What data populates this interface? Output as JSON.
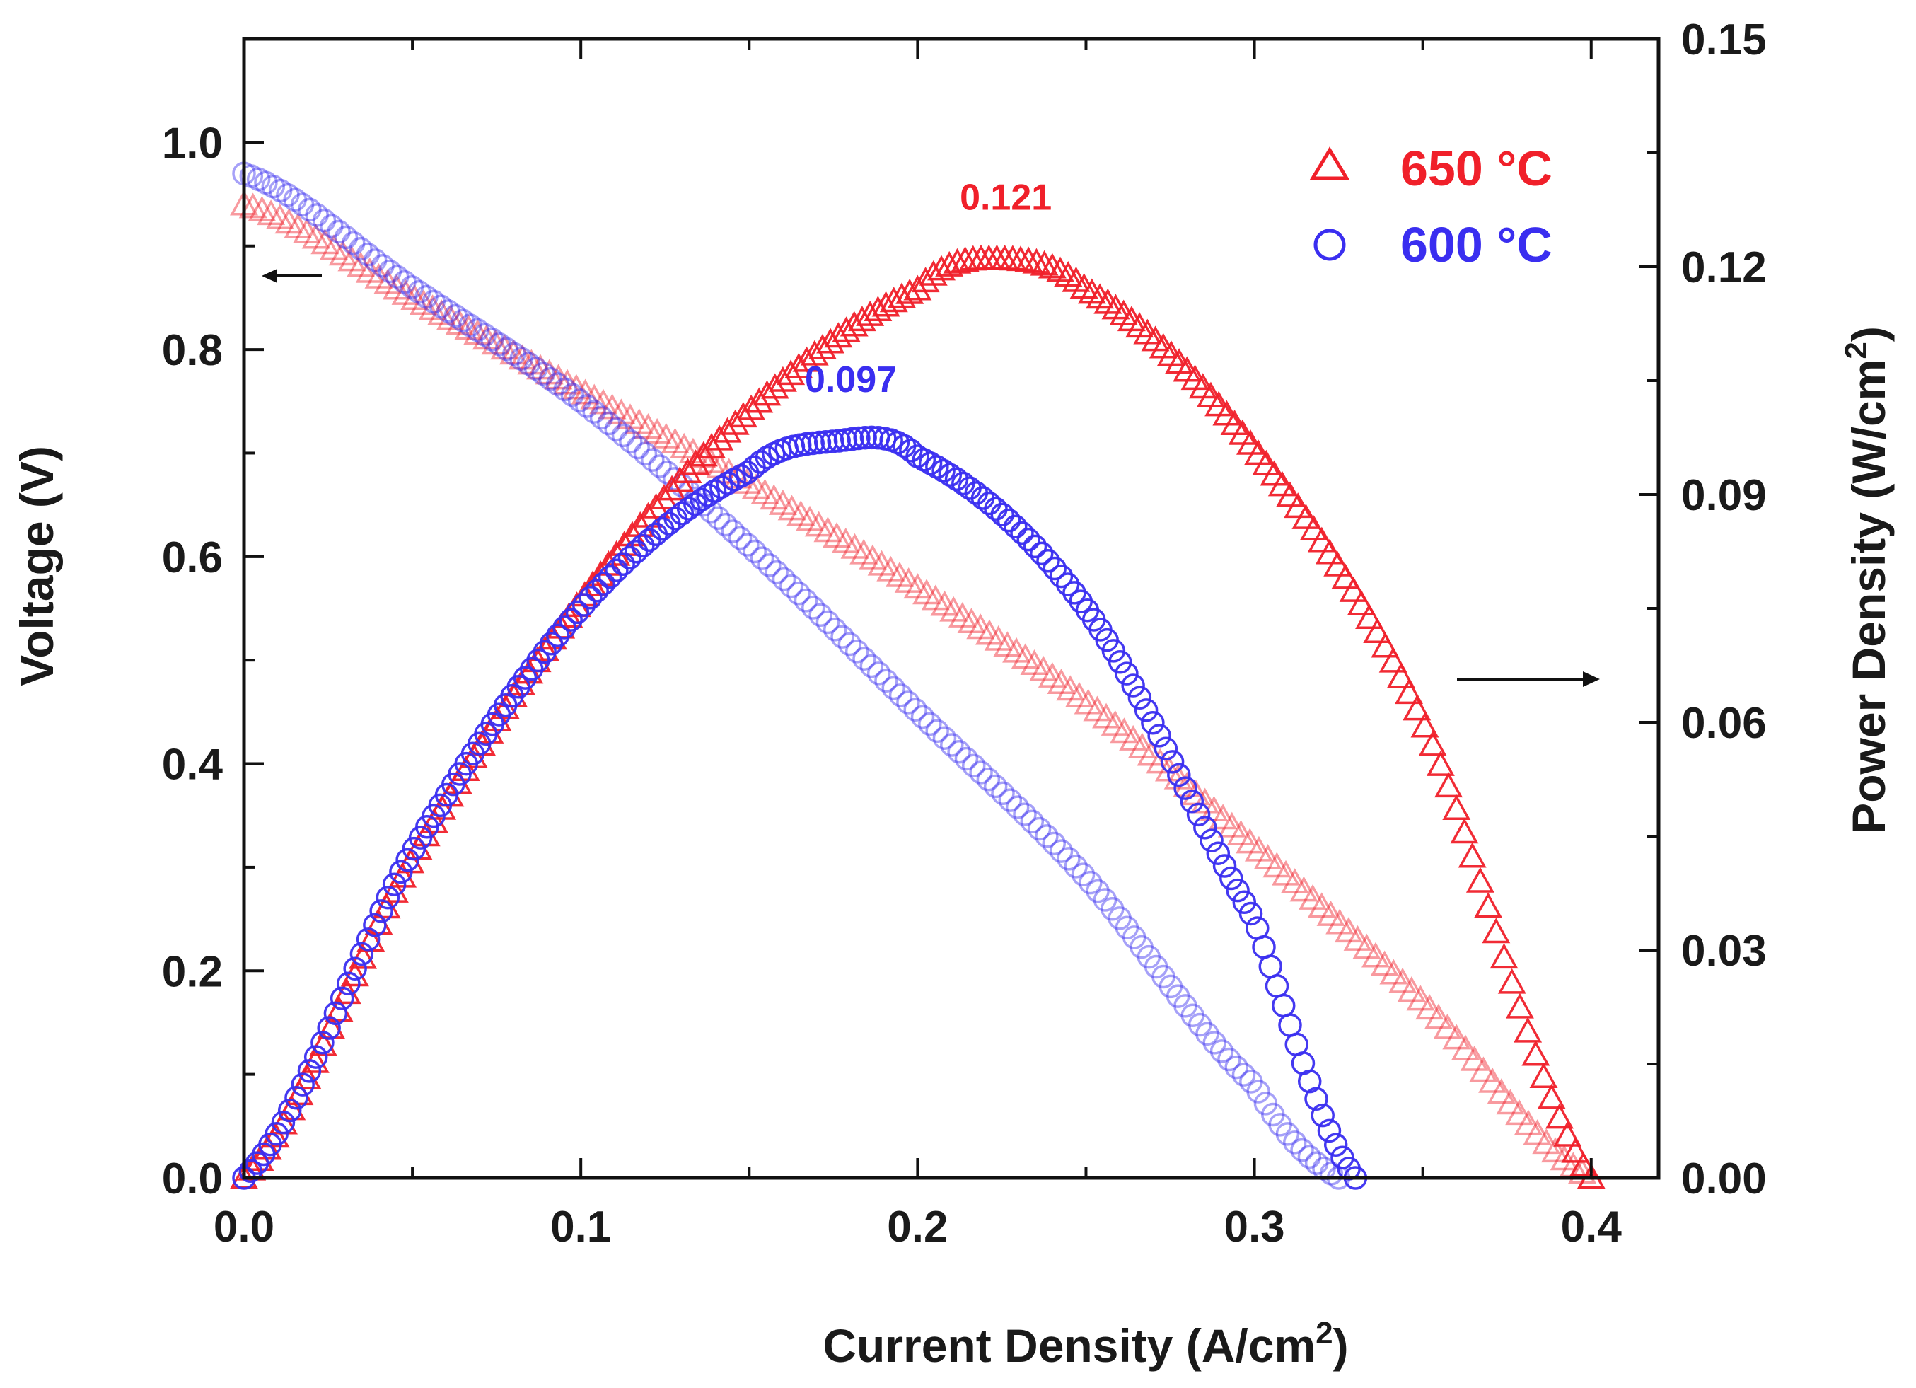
{
  "chart_data": {
    "type": "scatter",
    "xlabel": "Current Density (A/cm",
    "xlabel_sup": "2",
    "xlabel_tail": ")",
    "ylabel_left": "Voltage (V)",
    "ylabel_right": "Power Density (W/cm",
    "ylabel_right_sup": "2",
    "ylabel_right_tail": ")",
    "xlim": [
      0.0,
      0.42
    ],
    "ylim_left": [
      0.0,
      1.1
    ],
    "ylim_right": [
      0.0,
      0.15
    ],
    "x_ticks": [
      "0.0",
      "0.1",
      "0.2",
      "0.3",
      "0.4"
    ],
    "x_tick_values": [
      0.0,
      0.1,
      0.2,
      0.3,
      0.4
    ],
    "y_left_ticks": [
      "0.0",
      "0.2",
      "0.4",
      "0.6",
      "0.8",
      "1.0"
    ],
    "y_left_tick_values": [
      0.0,
      0.2,
      0.4,
      0.6,
      0.8,
      1.0
    ],
    "y_right_ticks": [
      "0.00",
      "0.03",
      "0.06",
      "0.09",
      "0.12",
      "0.15"
    ],
    "y_right_tick_values": [
      0.0,
      0.03,
      0.06,
      0.09,
      0.12,
      0.15
    ],
    "legend_position": "top-right",
    "grid": false,
    "series": [
      {
        "name": "650 °C",
        "marker": "triangle",
        "color": "#f0202a",
        "axis": "left",
        "kind": "voltage",
        "x": [
          0.0,
          0.05,
          0.1,
          0.15,
          0.2,
          0.25,
          0.3,
          0.35,
          0.4
        ],
        "y": [
          0.94,
          0.85,
          0.76,
          0.67,
          0.57,
          0.46,
          0.32,
          0.17,
          0.0
        ]
      },
      {
        "name": "600 °C",
        "marker": "circle",
        "color": "#3a2ef0",
        "axis": "left",
        "kind": "voltage",
        "x": [
          0.0,
          0.05,
          0.1,
          0.15,
          0.2,
          0.25,
          0.3,
          0.325
        ],
        "y": [
          0.97,
          0.86,
          0.75,
          0.61,
          0.45,
          0.29,
          0.09,
          0.0
        ]
      },
      {
        "name": "650 °C",
        "marker": "triangle",
        "color": "#f0202a",
        "axis": "right",
        "kind": "power",
        "x": [
          0.0,
          0.05,
          0.1,
          0.15,
          0.2,
          0.22,
          0.25,
          0.3,
          0.35,
          0.4
        ],
        "y": [
          0.0,
          0.042,
          0.076,
          0.101,
          0.117,
          0.121,
          0.117,
          0.096,
          0.06,
          0.0
        ]
      },
      {
        "name": "600 °C",
        "marker": "circle",
        "color": "#3a2ef0",
        "axis": "right",
        "kind": "power",
        "x": [
          0.0,
          0.05,
          0.1,
          0.15,
          0.175,
          0.2,
          0.25,
          0.3,
          0.33
        ],
        "y": [
          0.0,
          0.043,
          0.075,
          0.093,
          0.097,
          0.095,
          0.075,
          0.034,
          0.0
        ]
      }
    ],
    "annotations": [
      {
        "text": "0.121",
        "x": 0.222,
        "y": 0.121,
        "axis": "right",
        "color": "#f0202a"
      },
      {
        "text": "0.097",
        "x": 0.176,
        "y": 0.097,
        "axis": "right",
        "color": "#3a2ef0"
      }
    ]
  }
}
